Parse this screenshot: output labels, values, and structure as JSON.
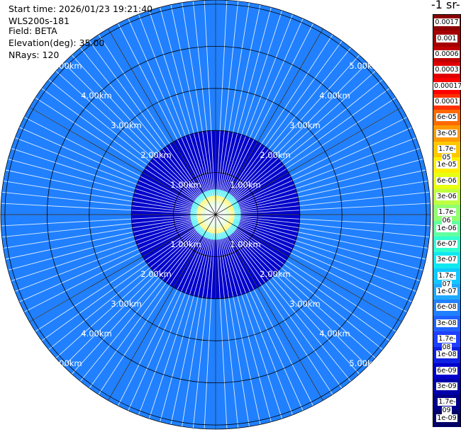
{
  "info": {
    "start_time": "Start time: 2026/01/23 19:21:40",
    "instrument": "WLS200s-181",
    "field": "Field: BETA",
    "elevation": "Elevation(deg): 35.00",
    "nrays": "NRays: 120"
  },
  "colorbar": {
    "units_title": "-1 sr-",
    "ticks": [
      "0.0017",
      "0.001",
      "0.0006",
      "0.0003",
      "0.00017",
      "0.0001",
      "6e-05",
      "3e-05",
      "1.7e-05",
      "1e-05",
      "6e-06",
      "3e-06",
      "1.7e-06",
      "1e-06",
      "6e-07",
      "3e-07",
      "1.7e-07",
      "1e-07",
      "6e-08",
      "3e-08",
      "1.7e-08",
      "1e-08",
      "6e-09",
      "3e-09",
      "1.7e-09",
      "1e-09"
    ],
    "colors": [
      "#8b0000",
      "#a50000",
      "#c00000",
      "#e00000",
      "#ff0000",
      "#ff3000",
      "#ff6a00",
      "#ff9a00",
      "#ffc800",
      "#ffee00",
      "#e8ff10",
      "#c0ff40",
      "#90ff70",
      "#60ffa0",
      "#30ffd0",
      "#10e8f0",
      "#10c8ff",
      "#20a8ff",
      "#2080ff",
      "#2060ff",
      "#2040ff",
      "#1020e0",
      "#0000cc",
      "#0000aa",
      "#000088",
      "#000066"
    ]
  },
  "chart_data": {
    "type": "heatmap",
    "projection": "polar PPI",
    "field": "BETA",
    "elevation_deg": 35.0,
    "nrays": 120,
    "range_rings_km": [
      1,
      2,
      3,
      4,
      5
    ],
    "ring_labels": [
      "1.00km",
      "2.00km",
      "3.00km",
      "4.00km",
      "5.00km"
    ],
    "max_range_km": 5.1,
    "color_scale": "log",
    "value_range": [
      1e-09,
      0.0017
    ],
    "radial_bands": [
      {
        "range_km": [
          0.0,
          0.18
        ],
        "value": 1e-07
      },
      {
        "range_km": [
          0.18,
          0.32
        ],
        "value": 1.7e-06
      },
      {
        "range_km": [
          0.32,
          0.45
        ],
        "value": 1e-05
      },
      {
        "range_km": [
          0.45,
          0.6
        ],
        "value": 3e-07
      },
      {
        "range_km": [
          0.6,
          1.0
        ],
        "value": 6e-09
      },
      {
        "range_km": [
          1.0,
          2.0
        ],
        "value": 6e-09
      },
      {
        "range_km": [
          2.0,
          5.1
        ],
        "value": 6e-08
      }
    ]
  }
}
